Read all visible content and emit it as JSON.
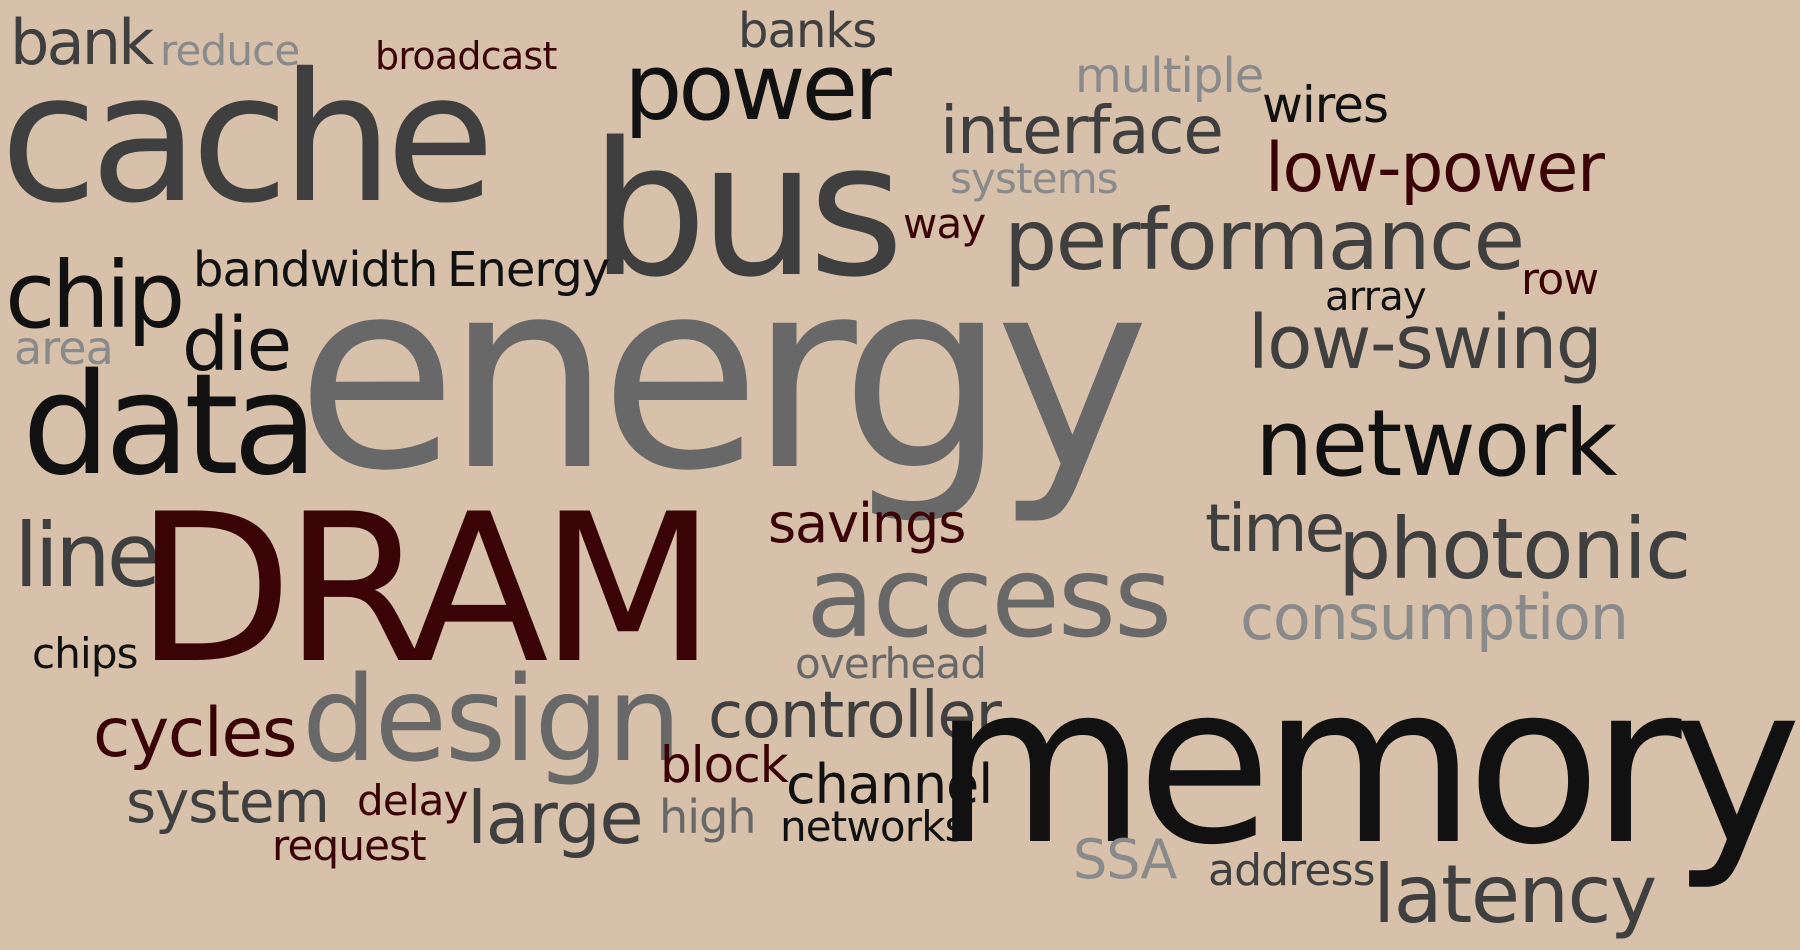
{
  "palette": {
    "background": "#d8c1aa",
    "dark": "#111111",
    "charcoal": "#3f3f3f",
    "gray": "#686868",
    "lightgray": "#8a8a8a",
    "maroon": "#3a0406"
  },
  "words": [
    {
      "id": "bank",
      "text": "bank",
      "color": "charcoal"
    },
    {
      "id": "reduce",
      "text": "reduce",
      "color": "lightgray"
    },
    {
      "id": "broadcast",
      "text": "broadcast",
      "color": "maroon"
    },
    {
      "id": "banks",
      "text": "banks",
      "color": "charcoal"
    },
    {
      "id": "power",
      "text": "power",
      "color": "dark"
    },
    {
      "id": "multiple",
      "text": "multiple",
      "color": "lightgray"
    },
    {
      "id": "wires",
      "text": "wires",
      "color": "dark"
    },
    {
      "id": "cache",
      "text": "cache",
      "color": "charcoal"
    },
    {
      "id": "interface",
      "text": "interface",
      "color": "charcoal"
    },
    {
      "id": "low-power",
      "text": "low-power",
      "color": "maroon"
    },
    {
      "id": "systems",
      "text": "systems",
      "color": "lightgray"
    },
    {
      "id": "bus",
      "text": "bus",
      "color": "charcoal"
    },
    {
      "id": "way",
      "text": "way",
      "color": "maroon"
    },
    {
      "id": "performance",
      "text": "performance",
      "color": "charcoal"
    },
    {
      "id": "chip",
      "text": "chip",
      "color": "dark"
    },
    {
      "id": "bandwidth",
      "text": "bandwidth",
      "color": "dark"
    },
    {
      "id": "Energy",
      "text": "Energy",
      "color": "dark"
    },
    {
      "id": "row",
      "text": "row",
      "color": "maroon"
    },
    {
      "id": "array",
      "text": "array",
      "color": "dark"
    },
    {
      "id": "area",
      "text": "area",
      "color": "lightgray"
    },
    {
      "id": "die",
      "text": "die",
      "color": "dark"
    },
    {
      "id": "energy",
      "text": "energy",
      "color": "gray"
    },
    {
      "id": "low-swing",
      "text": "low-swing",
      "color": "charcoal"
    },
    {
      "id": "data",
      "text": "data",
      "color": "dark"
    },
    {
      "id": "network",
      "text": "network",
      "color": "dark"
    },
    {
      "id": "line",
      "text": "line",
      "color": "charcoal"
    },
    {
      "id": "DRAM",
      "text": "DRAM",
      "color": "maroon"
    },
    {
      "id": "savings",
      "text": "savings",
      "color": "maroon"
    },
    {
      "id": "time",
      "text": "time",
      "color": "charcoal"
    },
    {
      "id": "photonic",
      "text": "photonic",
      "color": "charcoal"
    },
    {
      "id": "access",
      "text": "access",
      "color": "gray"
    },
    {
      "id": "consumption",
      "text": "consumption",
      "color": "lightgray"
    },
    {
      "id": "chips",
      "text": "chips",
      "color": "dark"
    },
    {
      "id": "overhead",
      "text": "overhead",
      "color": "gray"
    },
    {
      "id": "design",
      "text": "design",
      "color": "gray"
    },
    {
      "id": "cycles",
      "text": "cycles",
      "color": "maroon"
    },
    {
      "id": "controller",
      "text": "controller",
      "color": "charcoal"
    },
    {
      "id": "memory",
      "text": "memory",
      "color": "dark"
    },
    {
      "id": "block",
      "text": "block",
      "color": "maroon"
    },
    {
      "id": "channel",
      "text": "channel",
      "color": "dark"
    },
    {
      "id": "system",
      "text": "system",
      "color": "charcoal"
    },
    {
      "id": "delay",
      "text": "delay",
      "color": "maroon"
    },
    {
      "id": "large",
      "text": "large",
      "color": "charcoal"
    },
    {
      "id": "high",
      "text": "high",
      "color": "gray"
    },
    {
      "id": "networks",
      "text": "networks",
      "color": "dark"
    },
    {
      "id": "request",
      "text": "request",
      "color": "maroon"
    },
    {
      "id": "SSA",
      "text": "SSA",
      "color": "lightgray"
    },
    {
      "id": "address",
      "text": "address",
      "color": "charcoal"
    },
    {
      "id": "latency",
      "text": "latency",
      "color": "charcoal"
    }
  ]
}
